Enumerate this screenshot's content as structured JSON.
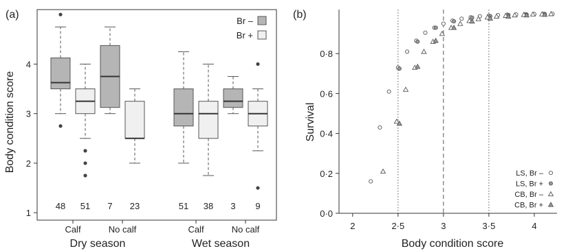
{
  "chart_data": [
    {
      "type": "boxplot",
      "panel_label": "(a)",
      "ylabel": "Body condition score",
      "ylim": [
        0.85,
        5.1
      ],
      "yticks": [
        "1",
        "2",
        "3",
        "4"
      ],
      "legend": {
        "placement": "top-right",
        "entries": [
          {
            "label": "Br –",
            "fill": "#b5b5b5"
          },
          {
            "label": "Br +",
            "fill": "#f0f0f0"
          }
        ]
      },
      "colors": {
        "br_minus": "#b5b5b5",
        "br_plus": "#f0f0f0",
        "outline": "#555555"
      },
      "groups": [
        {
          "season": "Dry season",
          "categories": [
            "Calf",
            "No calf"
          ],
          "boxes": [
            {
              "category": "Calf",
              "series": "Br –",
              "n": "48",
              "q1": 3.5,
              "median": 3.625,
              "q3": 4.125,
              "whisker_low": 3.0,
              "whisker_high": 4.75,
              "outliers": [
                5.0,
                2.75
              ]
            },
            {
              "category": "Calf",
              "series": "Br +",
              "n": "51",
              "q1": 3.0,
              "median": 3.25,
              "q3": 3.5,
              "whisker_low": 2.5,
              "whisker_high": 4.0,
              "outliers": [
                2.25,
                2.0,
                1.75
              ]
            },
            {
              "category": "No calf",
              "series": "Br –",
              "n": "7",
              "q1": 3.125,
              "median": 3.75,
              "q3": 4.375,
              "whisker_low": 3.0,
              "whisker_high": 4.75,
              "outliers": []
            },
            {
              "category": "No calf",
              "series": "Br +",
              "n": "23",
              "q1": 2.5,
              "median": 2.5,
              "q3": 3.25,
              "whisker_low": 2.0,
              "whisker_high": 3.5,
              "outliers": []
            }
          ]
        },
        {
          "season": "Wet season",
          "categories": [
            "Calf",
            "No calf"
          ],
          "boxes": [
            {
              "category": "Calf",
              "series": "Br –",
              "n": "51",
              "q1": 2.75,
              "median": 3.0,
              "q3": 3.5,
              "whisker_low": 2.0,
              "whisker_high": 4.25,
              "outliers": []
            },
            {
              "category": "Calf",
              "series": "Br +",
              "n": "38",
              "q1": 2.5,
              "median": 3.0,
              "q3": 3.25,
              "whisker_low": 1.75,
              "whisker_high": 4.0,
              "outliers": []
            },
            {
              "category": "No calf",
              "series": "Br –",
              "n": "3",
              "q1": 3.125,
              "median": 3.25,
              "q3": 3.5,
              "whisker_low": 3.0,
              "whisker_high": 3.75,
              "outliers": []
            },
            {
              "category": "No calf",
              "series": "Br +",
              "n": "9",
              "q1": 2.75,
              "median": 3.0,
              "q3": 3.25,
              "whisker_low": 2.25,
              "whisker_high": 3.5,
              "outliers": [
                4.0,
                1.5
              ]
            }
          ]
        }
      ]
    },
    {
      "type": "scatter",
      "panel_label": "(b)",
      "xlabel": "Body condition score",
      "ylabel": "Survival",
      "xlim": [
        1.85,
        4.25
      ],
      "ylim": [
        0.0,
        1.0
      ],
      "xticks": [
        "2",
        "2·5",
        "3",
        "3·5",
        "4"
      ],
      "yticks": [
        "0·0",
        "0·2",
        "0·4",
        "0·6",
        "0·8"
      ],
      "vlines": [
        {
          "x": 2.5,
          "style": "dotted"
        },
        {
          "x": 3.0,
          "style": "dashed"
        },
        {
          "x": 3.5,
          "style": "dotted"
        }
      ],
      "legend": {
        "placement": "bottom-right"
      },
      "series": [
        {
          "name": "LS, Br –",
          "marker": "circle",
          "filled": false,
          "x": [
            2.2,
            2.3,
            2.4,
            2.5,
            2.6,
            2.7,
            2.8,
            2.9,
            3.0,
            3.1,
            3.2,
            3.3,
            3.4,
            3.5,
            3.6,
            3.7,
            3.8,
            3.9,
            4.0,
            4.1,
            4.2
          ],
          "y": [
            0.16,
            0.43,
            0.61,
            0.73,
            0.81,
            0.865,
            0.905,
            0.93,
            0.95,
            0.965,
            0.975,
            0.982,
            0.987,
            0.99,
            0.993,
            0.995,
            0.996,
            0.997,
            0.998,
            0.999,
            0.999
          ]
        },
        {
          "name": "LS, Br +",
          "marker": "circle",
          "filled": true,
          "x": [
            2.5,
            2.7,
            2.9,
            3.1,
            3.3,
            3.5,
            3.7,
            3.9,
            4.1
          ],
          "y": [
            0.725,
            0.86,
            0.93,
            0.962,
            0.98,
            0.988,
            0.994,
            0.996,
            0.998
          ]
        },
        {
          "name": "CB, Br –",
          "marker": "triangle",
          "filled": false,
          "x": [
            2.35,
            2.5,
            2.6,
            2.7,
            2.8,
            2.9,
            3.0,
            3.1,
            3.2,
            3.3,
            3.4,
            3.5,
            3.6,
            3.7,
            3.8,
            3.9,
            4.0,
            4.1,
            4.2
          ],
          "y": [
            0.21,
            0.46,
            0.62,
            0.73,
            0.81,
            0.86,
            0.9,
            0.93,
            0.95,
            0.965,
            0.974,
            0.982,
            0.987,
            0.99,
            0.993,
            0.995,
            0.997,
            0.998,
            0.999
          ]
        },
        {
          "name": "CB, Br +",
          "marker": "triangle",
          "filled": true,
          "x": [
            2.5,
            2.7,
            2.9,
            3.1,
            3.3,
            3.5,
            3.7,
            3.9,
            4.1
          ],
          "y": [
            0.45,
            0.735,
            0.865,
            0.93,
            0.962,
            0.977,
            0.987,
            0.993,
            0.996
          ]
        }
      ]
    }
  ]
}
